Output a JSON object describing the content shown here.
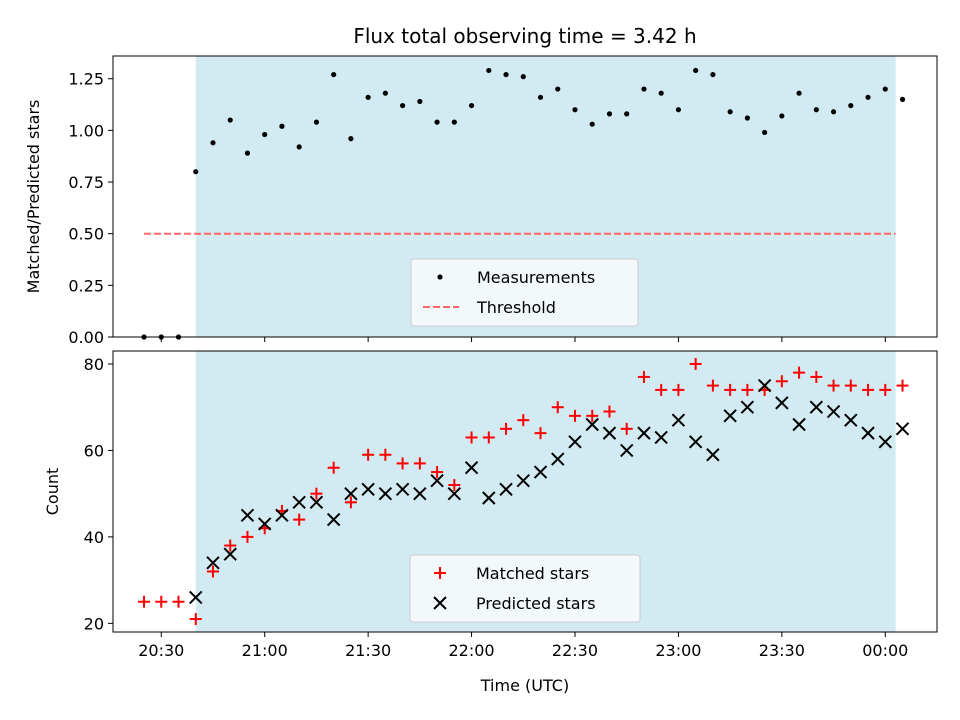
{
  "chart_data": [
    {
      "type": "scatter",
      "title": "Flux total observing time = 3.42 h",
      "xlabel": "",
      "ylabel": "Matched/Predicted stars",
      "ylim": [
        0,
        1.36
      ],
      "yticks": [
        "0.00",
        "0.25",
        "0.50",
        "0.75",
        "1.00",
        "1.25"
      ],
      "ytick_values": [
        0,
        0.25,
        0.5,
        0.75,
        1.0,
        1.25
      ],
      "xlim": [
        "20:16",
        "00:15"
      ],
      "xtick_times": [
        "20:30",
        "21:00",
        "21:30",
        "22:00",
        "22:30",
        "23:00",
        "23:30",
        "00:00"
      ],
      "show_xtick_labels": false,
      "shaded_span": [
        "20:40",
        "00:03"
      ],
      "shade_color": "#add8e6",
      "legend": {
        "location": "lower center",
        "entries": [
          "Measurements",
          "Threshold"
        ]
      },
      "threshold": {
        "name": "Threshold",
        "y": 0.5,
        "x_start": "20:25",
        "x_end": "00:03",
        "color": "#ff6666",
        "style": "dashed"
      },
      "series": [
        {
          "name": "Measurements",
          "marker": "dot",
          "color": "#000000",
          "x": [
            "20:25",
            "20:30",
            "20:35",
            "20:40",
            "20:45",
            "20:50",
            "20:55",
            "21:00",
            "21:05",
            "21:10",
            "21:15",
            "21:20",
            "21:25",
            "21:30",
            "21:35",
            "21:40",
            "21:45",
            "21:50",
            "21:55",
            "22:00",
            "22:05",
            "22:10",
            "22:15",
            "22:20",
            "22:25",
            "22:30",
            "22:35",
            "22:40",
            "22:45",
            "22:50",
            "22:55",
            "23:00",
            "23:05",
            "23:10",
            "23:15",
            "23:20",
            "23:25",
            "23:30",
            "23:35",
            "23:40",
            "23:45",
            "23:50",
            "23:55",
            "00:00",
            "00:05"
          ],
          "y": [
            0.0,
            0.0,
            0.0,
            0.8,
            0.94,
            1.05,
            0.89,
            0.98,
            1.02,
            0.92,
            1.04,
            1.27,
            0.96,
            1.16,
            1.18,
            1.12,
            1.14,
            1.04,
            1.04,
            1.12,
            1.29,
            1.27,
            1.26,
            1.16,
            1.2,
            1.1,
            1.03,
            1.08,
            1.08,
            1.2,
            1.18,
            1.1,
            1.29,
            1.27,
            1.09,
            1.06,
            0.99,
            1.07,
            1.18,
            1.1,
            1.09,
            1.12,
            1.16,
            1.2,
            1.15
          ]
        }
      ]
    },
    {
      "type": "scatter",
      "title": "",
      "xlabel": "Time (UTC)",
      "ylabel": "Count",
      "ylim": [
        18,
        83
      ],
      "yticks": [
        "20",
        "40",
        "60",
        "80"
      ],
      "ytick_values": [
        20,
        40,
        60,
        80
      ],
      "xlim": [
        "20:16",
        "00:15"
      ],
      "xticks": [
        "20:30",
        "21:00",
        "21:30",
        "22:00",
        "22:30",
        "23:00",
        "23:30",
        "00:00"
      ],
      "xtick_times": [
        "20:30",
        "21:00",
        "21:30",
        "22:00",
        "22:30",
        "23:00",
        "23:30",
        "00:00"
      ],
      "shaded_span": [
        "20:40",
        "00:03"
      ],
      "shade_color": "#add8e6",
      "legend": {
        "location": "lower center",
        "entries": [
          "Matched stars",
          "Predicted stars"
        ]
      },
      "series": [
        {
          "name": "Matched stars",
          "marker": "plus",
          "color": "#ff0000",
          "x": [
            "20:25",
            "20:30",
            "20:35",
            "20:40",
            "20:45",
            "20:50",
            "20:55",
            "21:00",
            "21:05",
            "21:10",
            "21:15",
            "21:20",
            "21:25",
            "21:30",
            "21:35",
            "21:40",
            "21:45",
            "21:50",
            "21:55",
            "22:00",
            "22:05",
            "22:10",
            "22:15",
            "22:20",
            "22:25",
            "22:30",
            "22:35",
            "22:40",
            "22:45",
            "22:50",
            "22:55",
            "23:00",
            "23:05",
            "23:10",
            "23:15",
            "23:20",
            "23:25",
            "23:30",
            "23:35",
            "23:40",
            "23:45",
            "23:50",
            "23:55",
            "00:00",
            "00:05"
          ],
          "y": [
            25,
            25,
            25,
            21,
            32,
            38,
            40,
            42,
            46,
            44,
            50,
            56,
            48,
            59,
            59,
            57,
            57,
            55,
            52,
            63,
            63,
            65,
            67,
            64,
            70,
            68,
            68,
            69,
            65,
            77,
            74,
            74,
            80,
            75,
            74,
            74,
            74,
            76,
            78,
            77,
            75,
            75,
            74,
            74,
            75
          ]
        },
        {
          "name": "Predicted stars",
          "marker": "x",
          "color": "#000000",
          "x": [
            "20:40",
            "20:45",
            "20:50",
            "20:55",
            "21:00",
            "21:05",
            "21:10",
            "21:15",
            "21:20",
            "21:25",
            "21:30",
            "21:35",
            "21:40",
            "21:45",
            "21:50",
            "21:55",
            "22:00",
            "22:05",
            "22:10",
            "22:15",
            "22:20",
            "22:25",
            "22:30",
            "22:35",
            "22:40",
            "22:45",
            "22:50",
            "22:55",
            "23:00",
            "23:05",
            "23:10",
            "23:15",
            "23:20",
            "23:25",
            "23:30",
            "23:35",
            "23:40",
            "23:45",
            "23:50",
            "23:55",
            "00:00",
            "00:05"
          ],
          "y": [
            26,
            34,
            36,
            45,
            43,
            45,
            48,
            48,
            44,
            50,
            51,
            50,
            51,
            50,
            53,
            50,
            56,
            49,
            51,
            53,
            55,
            58,
            62,
            66,
            64,
            60,
            64,
            63,
            67,
            62,
            59,
            68,
            70,
            75,
            71,
            66,
            70,
            69,
            67,
            64,
            62,
            65
          ]
        }
      ]
    }
  ]
}
